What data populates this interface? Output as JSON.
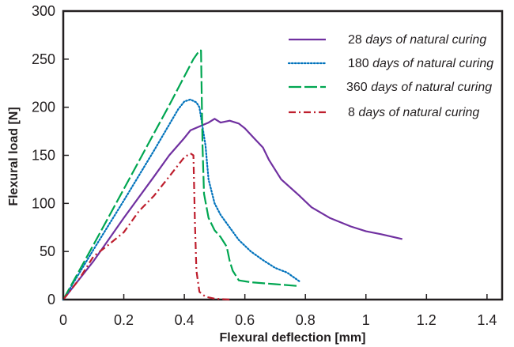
{
  "chart_data": {
    "type": "line",
    "xlabel": "Flexural deflection [mm]",
    "ylabel": "Flexural load [N]",
    "xlim": [
      0,
      1.45
    ],
    "ylim": [
      0,
      300
    ],
    "xticks": [
      0,
      0.2,
      0.4,
      0.6,
      0.8,
      1,
      1.2,
      1.4
    ],
    "xtick_labels": [
      "0",
      "0.2",
      "0.4",
      "0.6",
      "0.8",
      "1",
      "1.2",
      "1.4"
    ],
    "yticks": [
      0,
      50,
      100,
      150,
      200,
      250,
      300
    ],
    "ytick_labels": [
      "0",
      "50",
      "100",
      "150",
      "200",
      "250",
      "300"
    ],
    "grid": false,
    "legend_position": "top-right",
    "series": [
      {
        "name": "28 days of natural curing",
        "legend_num": "28",
        "legend_text": "days of natural curing",
        "color": "#7030a0",
        "dash": "solid",
        "points": [
          [
            0,
            0
          ],
          [
            0.1,
            40
          ],
          [
            0.2,
            85
          ],
          [
            0.3,
            128
          ],
          [
            0.35,
            150
          ],
          [
            0.4,
            168
          ],
          [
            0.42,
            176
          ],
          [
            0.45,
            180
          ],
          [
            0.48,
            184
          ],
          [
            0.5,
            188
          ],
          [
            0.52,
            184
          ],
          [
            0.55,
            186
          ],
          [
            0.58,
            183
          ],
          [
            0.6,
            178
          ],
          [
            0.63,
            168
          ],
          [
            0.66,
            158
          ],
          [
            0.68,
            145
          ],
          [
            0.72,
            125
          ],
          [
            0.78,
            108
          ],
          [
            0.82,
            96
          ],
          [
            0.88,
            85
          ],
          [
            0.95,
            76
          ],
          [
            1.0,
            71
          ],
          [
            1.05,
            68
          ],
          [
            1.12,
            63
          ]
        ]
      },
      {
        "name": "180 days of natural curing",
        "legend_num": "180",
        "legend_text": "days of natural curing",
        "color": "#0072bc",
        "dash": "dotted",
        "points": [
          [
            0,
            0
          ],
          [
            0.1,
            52
          ],
          [
            0.2,
            103
          ],
          [
            0.3,
            155
          ],
          [
            0.35,
            182
          ],
          [
            0.38,
            198
          ],
          [
            0.4,
            206
          ],
          [
            0.42,
            208
          ],
          [
            0.44,
            205
          ],
          [
            0.45,
            200
          ],
          [
            0.47,
            160
          ],
          [
            0.48,
            125
          ],
          [
            0.5,
            100
          ],
          [
            0.52,
            88
          ],
          [
            0.55,
            75
          ],
          [
            0.58,
            62
          ],
          [
            0.62,
            50
          ],
          [
            0.66,
            41
          ],
          [
            0.7,
            33
          ],
          [
            0.74,
            28
          ],
          [
            0.78,
            19
          ]
        ]
      },
      {
        "name": "360 days of natural curing",
        "legend_num": "360",
        "legend_text": "days of natural curing",
        "color": "#00a651",
        "dash": "longdash",
        "points": [
          [
            0,
            0
          ],
          [
            0.1,
            57
          ],
          [
            0.2,
            115
          ],
          [
            0.3,
            173
          ],
          [
            0.35,
            202
          ],
          [
            0.4,
            232
          ],
          [
            0.43,
            250
          ],
          [
            0.45,
            259
          ],
          [
            0.455,
            259
          ],
          [
            0.46,
            160
          ],
          [
            0.465,
            110
          ],
          [
            0.48,
            85
          ],
          [
            0.5,
            72
          ],
          [
            0.52,
            65
          ],
          [
            0.54,
            55
          ],
          [
            0.55,
            40
          ],
          [
            0.56,
            30
          ],
          [
            0.58,
            20
          ],
          [
            0.62,
            18
          ],
          [
            0.7,
            16
          ],
          [
            0.78,
            14
          ]
        ]
      },
      {
        "name": "8 days of natural curing",
        "legend_num": "8",
        "legend_text": "days of natural curing",
        "color": "#be1e2d",
        "dash": "dashdot",
        "points": [
          [
            0,
            0
          ],
          [
            0.05,
            20
          ],
          [
            0.1,
            45
          ],
          [
            0.15,
            57
          ],
          [
            0.2,
            70
          ],
          [
            0.25,
            92
          ],
          [
            0.3,
            108
          ],
          [
            0.35,
            128
          ],
          [
            0.4,
            148
          ],
          [
            0.42,
            152
          ],
          [
            0.43,
            150
          ],
          [
            0.435,
            80
          ],
          [
            0.44,
            30
          ],
          [
            0.45,
            8
          ],
          [
            0.47,
            3
          ],
          [
            0.5,
            1
          ],
          [
            0.55,
            0
          ]
        ]
      }
    ]
  }
}
